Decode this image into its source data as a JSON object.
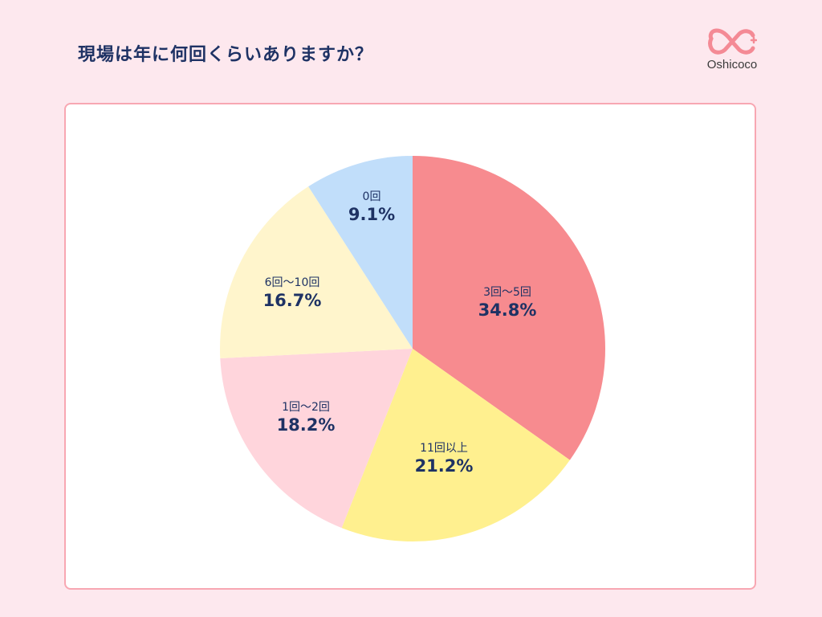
{
  "header": {
    "title": "現場は年に何回くらいありますか？",
    "logo_text": "Oshicoco",
    "logo_color": "#f48a95"
  },
  "chart_data": {
    "type": "pie",
    "title": "現場は年に何回くらいありますか？",
    "categories": [
      "3回〜5回",
      "11回以上",
      "1回〜2回",
      "6回〜10回",
      "0回"
    ],
    "values": [
      34.8,
      21.2,
      18.2,
      16.7,
      9.1
    ],
    "colors": [
      "#f78b8f",
      "#fff08f",
      "#ffd5dc",
      "#fff5cc",
      "#c1defa"
    ],
    "start_angle": "top (12 o'clock)",
    "direction": "clockwise",
    "unit": "%"
  },
  "labels": [
    {
      "cat": "3回〜5回",
      "pct": "34.8%"
    },
    {
      "cat": "11回以上",
      "pct": "21.2%"
    },
    {
      "cat": "1回〜2回",
      "pct": "18.2%"
    },
    {
      "cat": "6回〜10回",
      "pct": "16.7%"
    },
    {
      "cat": "0回",
      "pct": "9.1%"
    }
  ]
}
